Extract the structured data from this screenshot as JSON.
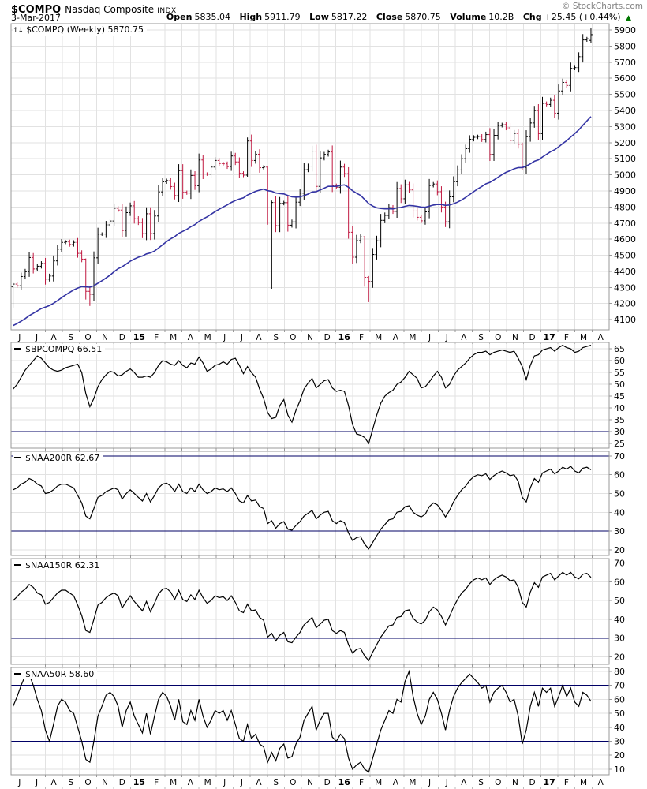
{
  "header": {
    "symbol": "$COMPQ",
    "name": "Nasdaq Composite",
    "exchange": "INDX",
    "date": "3-Mar-2017",
    "copyright": "© StockCharts.com",
    "quote": {
      "open_label": "Open",
      "open": "5835.04",
      "high_label": "High",
      "high": "5911.79",
      "low_label": "Low",
      "low": "5817.22",
      "close_label": "Close",
      "close": "5870.75",
      "volume_label": "Volume",
      "volume": "10.2B",
      "chg_label": "Chg",
      "chg": "+25.45 (+0.44%)",
      "chg_icon": "▲"
    }
  },
  "colors": {
    "up": "#000000",
    "down": "#c01840",
    "ma": "#3434a4",
    "line": "#000000",
    "threshold": "#000066",
    "grid": "#e2e2e2",
    "axis_border": "#999999",
    "tick_dot": "#bbbbbb",
    "change_up": "#007700",
    "copyright_gray": "#808080"
  },
  "x_axis": {
    "labels": [
      "J",
      "J",
      "A",
      "S",
      "O",
      "N",
      "D",
      "15",
      "F",
      "M",
      "A",
      "M",
      "J",
      "J",
      "A",
      "S",
      "O",
      "N",
      "D",
      "16",
      "F",
      "M",
      "A",
      "M",
      "J",
      "J",
      "A",
      "S",
      "O",
      "N",
      "D",
      "17",
      "F",
      "M",
      "A"
    ],
    "bold": [
      "15",
      "16",
      "17"
    ]
  },
  "chart_data": [
    {
      "id": "compq",
      "type": "candlestick",
      "legend": "$COMPQ (Weekly) 5870.75",
      "timeframe": "Weekly",
      "ylim": [
        4037,
        5939
      ],
      "yticks": [
        4100,
        4200,
        4300,
        4400,
        4500,
        4600,
        4700,
        4800,
        4900,
        5000,
        5100,
        5200,
        5300,
        5400,
        5500,
        5600,
        5700,
        5800,
        5900
      ],
      "first_open": 4305,
      "closes": [
        4321,
        4311,
        4368,
        4398,
        4486,
        4415,
        4432,
        4449,
        4352,
        4371,
        4465,
        4538,
        4580,
        4583,
        4567,
        4580,
        4512,
        4476,
        4276,
        4258,
        4484,
        4631,
        4632,
        4689,
        4713,
        4792,
        4781,
        4654,
        4765,
        4807,
        4727,
        4704,
        4634,
        4758,
        4635,
        4744,
        4894,
        4956,
        4964,
        4927,
        4871,
        5026,
        4891,
        4887,
        4996,
        4932,
        5092,
        5005,
        5004,
        5048,
        5089,
        5070,
        5068,
        5051,
        5117,
        5080,
        5009,
        4998,
        5210,
        5089,
        5128,
        5044,
        5048,
        4706,
        4828,
        4684,
        4822,
        4827,
        4687,
        4707,
        4830,
        4886,
        5032,
        5054,
        5147,
        4928,
        5105,
        5127,
        5142,
        4933,
        4923,
        5048,
        5007,
        4643,
        4488,
        4591,
        4614,
        4363,
        4338,
        4505,
        4590,
        4717,
        4748,
        4796,
        4773,
        4915,
        4851,
        4938,
        4906,
        4775,
        4736,
        4714,
        4770,
        4934,
        4943,
        4895,
        4800,
        4708,
        4863,
        4957,
        5030,
        5100,
        5162,
        5221,
        5233,
        5238,
        5219,
        5250,
        5126,
        5245,
        5306,
        5312,
        5292,
        5214,
        5257,
        5190,
        5046,
        5237,
        5322,
        5399,
        5256,
        5444,
        5437,
        5463,
        5383,
        5521,
        5574,
        5555,
        5661,
        5666,
        5734,
        5838,
        5845,
        5870.75
      ],
      "wick_overrides": {
        "0": [
          4330,
          4175
        ],
        "18": [
          4480,
          4225
        ],
        "19": [
          4310,
          4185
        ],
        "58": [
          5232,
          4988
        ],
        "63": [
          5052,
          4690
        ],
        "64": [
          4840,
          4292
        ],
        "87": [
          4620,
          4305
        ],
        "88": [
          4371,
          4209
        ],
        "126": [
          5200,
          5030
        ]
      },
      "last_bar": [
        5835.04,
        5911.79,
        5817.22,
        5870.75
      ],
      "ma": {
        "type": "ema-approx-40wk",
        "alpha": 0.05,
        "seed": 4050
      }
    },
    {
      "id": "bpcompq",
      "type": "line",
      "legend": "$BPCOMPQ 66.51",
      "ylim": [
        23,
        67.7
      ],
      "yticks": [
        25,
        30,
        35,
        40,
        45,
        50,
        55,
        60,
        65
      ],
      "hlines": [
        30
      ],
      "values": [
        48,
        50,
        53,
        56,
        58,
        60,
        62,
        61,
        59,
        57,
        56,
        55.5,
        56,
        57,
        57.5,
        58,
        58.5,
        55,
        46,
        40.5,
        44,
        49,
        52,
        54,
        55.5,
        55,
        53.5,
        54,
        55.5,
        56.5,
        55,
        53,
        53,
        53.5,
        53,
        55,
        58,
        60,
        59.5,
        58.5,
        58,
        60,
        58,
        57,
        59,
        58.5,
        61.5,
        59,
        55.5,
        56.5,
        58,
        58.5,
        59.5,
        58.5,
        60.5,
        61,
        58,
        54.5,
        57.5,
        55,
        53,
        48,
        44,
        38,
        35.5,
        36,
        41,
        43.5,
        37,
        34,
        39,
        43,
        48,
        50.5,
        52.5,
        48.5,
        50,
        51.5,
        52,
        48.5,
        47,
        47.5,
        47,
        41,
        33,
        29,
        28.5,
        27.5,
        25,
        31,
        37,
        42,
        45,
        46.5,
        47.5,
        50,
        51,
        53,
        55.5,
        54,
        52.5,
        48.5,
        49,
        51,
        53.5,
        55.5,
        53,
        48.5,
        50,
        53.5,
        56,
        57.5,
        59,
        61,
        62.5,
        63.5,
        63.5,
        64,
        62.5,
        63.5,
        64,
        64.5,
        64,
        63.5,
        64,
        61,
        57.5,
        52,
        58,
        62,
        62.5,
        64.5,
        65,
        65.5,
        64,
        65.5,
        66.5,
        65.5,
        65,
        63.5,
        64,
        65.5,
        66,
        66.51
      ]
    },
    {
      "id": "naa200r",
      "type": "line",
      "legend": "$NAA200R 62.67",
      "ylim": [
        17,
        72.5
      ],
      "yticks": [
        20,
        30,
        40,
        50,
        60,
        70
      ],
      "hlines": [
        70,
        30
      ],
      "values": [
        52,
        53,
        55,
        56,
        58,
        57,
        55,
        54,
        50,
        50.5,
        52,
        54,
        55,
        55,
        54,
        53,
        49,
        45,
        38,
        36.5,
        42,
        48,
        49,
        51,
        52,
        53,
        52,
        47,
        50,
        52,
        50,
        48,
        46,
        50,
        45.5,
        49,
        53,
        55,
        55.5,
        54,
        51,
        55,
        51,
        50,
        53,
        51,
        55,
        52,
        50,
        51,
        53,
        52,
        52.5,
        51,
        53,
        50,
        46,
        45,
        49,
        46,
        46.5,
        43,
        42,
        34,
        35.5,
        31.5,
        34,
        35,
        31,
        30.5,
        33,
        35,
        38,
        39.5,
        41,
        36.5,
        38.5,
        40,
        40.5,
        35.5,
        34,
        35.5,
        34.5,
        29,
        25,
        26.5,
        27,
        23,
        20.5,
        24,
        27.5,
        31,
        33.5,
        36,
        36.5,
        40,
        40.5,
        43,
        43.5,
        40,
        38.5,
        37.5,
        39,
        43,
        45,
        44,
        41,
        37.5,
        41,
        45.5,
        49,
        52,
        54,
        57,
        59,
        60,
        59.5,
        60.5,
        57.5,
        59.5,
        61,
        62,
        61,
        59.5,
        60,
        56.5,
        48,
        45.5,
        53,
        58,
        56,
        61,
        62,
        63,
        60.5,
        62,
        64,
        63,
        64.5,
        62,
        61,
        63.5,
        64,
        62.67
      ]
    },
    {
      "id": "naa150r",
      "type": "line",
      "legend": "$NAA150R 62.31",
      "ylim": [
        16,
        72.3
      ],
      "yticks": [
        20,
        30,
        40,
        50,
        60,
        70
      ],
      "hlines": [
        70,
        30
      ],
      "values": [
        50,
        52,
        54.5,
        56,
        58.5,
        57,
        54,
        53,
        48,
        49,
        51.5,
        54,
        55.5,
        55.5,
        54,
        52.5,
        47.5,
        42,
        34,
        33,
        40,
        47.5,
        49,
        51.5,
        53,
        54,
        52.5,
        46,
        49.5,
        52.5,
        49.5,
        47,
        44.5,
        49.5,
        44,
        48.5,
        53.5,
        56,
        56.5,
        54.5,
        50.5,
        55.5,
        50.5,
        49.5,
        53,
        50.5,
        55.5,
        51.5,
        48.5,
        50,
        52.5,
        51.5,
        52,
        50,
        52.5,
        49,
        44.5,
        43.5,
        48,
        44.5,
        45,
        41,
        39.5,
        30.5,
        32.5,
        28.5,
        31.5,
        33,
        28,
        27.5,
        30.5,
        33,
        37,
        39,
        41,
        35.5,
        37.5,
        39.5,
        40,
        34,
        32.5,
        34,
        33,
        26.5,
        22,
        24,
        24.5,
        20.5,
        18,
        22.5,
        26.5,
        30.5,
        33.5,
        36.5,
        37,
        41,
        41.5,
        44.5,
        45,
        40.5,
        38.5,
        37.5,
        39.5,
        44,
        46.5,
        45,
        41.5,
        37,
        41.5,
        46.5,
        50.5,
        54,
        56,
        59,
        61,
        62,
        61,
        62,
        58.5,
        61,
        62.5,
        63.5,
        62.5,
        60.5,
        61,
        57,
        49,
        46.5,
        54.5,
        59.5,
        57,
        62.5,
        63.5,
        64.5,
        61,
        63,
        65,
        63.5,
        65,
        62.5,
        61.5,
        64,
        64.5,
        62.31
      ]
    },
    {
      "id": "naa50r",
      "type": "line",
      "legend": "$NAA50R 58.60",
      "ylim": [
        6,
        82.8
      ],
      "yticks": [
        10,
        20,
        30,
        40,
        50,
        60,
        70,
        80
      ],
      "hlines": [
        70,
        30
      ],
      "values": [
        55,
        62,
        70,
        77,
        78,
        70,
        60,
        52,
        38,
        30,
        42,
        55,
        60,
        58,
        52,
        50,
        40,
        30,
        17,
        15,
        30,
        48,
        55,
        63,
        65,
        62,
        55,
        40,
        52,
        58,
        48,
        42,
        36,
        50,
        35,
        48,
        60,
        65,
        62,
        55,
        45,
        60,
        44,
        42,
        52,
        45,
        60,
        48,
        40,
        45,
        52,
        50,
        52,
        45,
        52,
        42,
        32,
        30,
        42,
        32,
        35,
        28,
        26,
        15,
        22,
        16,
        25,
        28,
        18,
        19,
        28,
        33,
        45,
        50,
        55,
        38,
        45,
        50,
        50,
        33,
        30,
        35,
        32,
        18,
        10,
        13,
        15,
        10,
        8,
        18,
        28,
        38,
        45,
        52,
        50,
        60,
        58,
        73,
        80,
        62,
        50,
        42,
        48,
        60,
        65,
        60,
        50,
        38,
        52,
        62,
        68,
        72,
        75,
        78,
        75,
        72,
        68,
        70,
        58,
        65,
        68,
        70,
        65,
        58,
        60,
        48,
        28,
        38,
        55,
        65,
        55,
        68,
        65,
        68,
        55,
        62,
        70,
        62,
        68,
        58,
        55,
        65,
        63,
        58.6
      ]
    }
  ]
}
